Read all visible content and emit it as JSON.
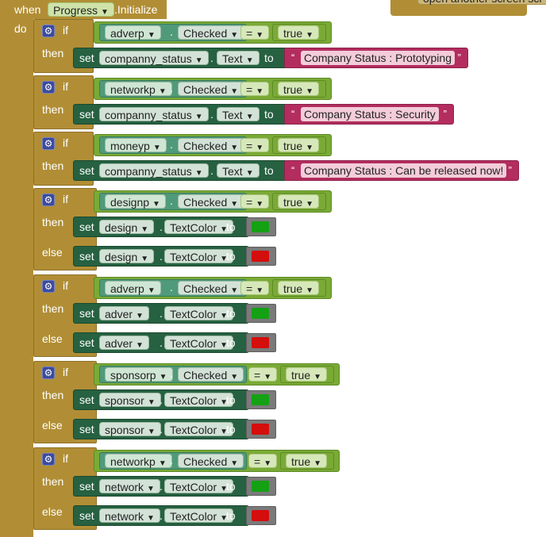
{
  "event": {
    "when": "when",
    "component": "Progress",
    "event_name": ".Initialize",
    "do": "do"
  },
  "top_block_fragment": "open another screen  scr",
  "keywords": {
    "if": "if",
    "then": "then",
    "else": "else",
    "set": "set",
    "to": "to",
    "dot": ".",
    "eq": "=",
    "true": "true",
    "open_quote": "“",
    "close_quote": "”"
  },
  "colors": {
    "green_swatch": "#14a114",
    "red_swatch": "#d40d0d",
    "event": "#b18e35",
    "logic": "#7aaa36",
    "setter": "#266141",
    "text": "#b32d5e"
  },
  "blocks": [
    {
      "cond_component": "adverp",
      "cond_property": "Checked",
      "then_component": "companny_status",
      "then_property": "Text",
      "then_value": "Company Status : Prototyping"
    },
    {
      "cond_component": "networkp",
      "cond_property": "Checked",
      "then_component": "companny_status",
      "then_property": "Text",
      "then_value": "Company Status : Security"
    },
    {
      "cond_component": "moneyp",
      "cond_property": "Checked",
      "then_component": "companny_status",
      "then_property": "Text",
      "then_value": "Company Status : Can be released now!"
    },
    {
      "cond_component": "designp",
      "cond_property": "Checked",
      "then_component": "design",
      "then_property": "TextColor",
      "then_color": "green",
      "else_component": "design",
      "else_property": "TextColor",
      "else_color": "red"
    },
    {
      "cond_component": "adverp",
      "cond_property": "Checked",
      "then_component": "adver",
      "then_property": "TextColor",
      "then_color": "green",
      "else_component": "adver",
      "else_property": "TextColor",
      "else_color": "red"
    },
    {
      "cond_component": "sponsorp",
      "cond_property": "Checked",
      "then_component": "sponsor",
      "then_property": "TextColor",
      "then_color": "green",
      "else_component": "sponsor",
      "else_property": "TextColor",
      "else_color": "red"
    },
    {
      "cond_component": "networkp",
      "cond_property": "Checked",
      "then_component": "network",
      "then_property": "TextColor",
      "then_color": "green",
      "else_component": "network",
      "else_property": "TextColor",
      "else_color": "red"
    }
  ]
}
